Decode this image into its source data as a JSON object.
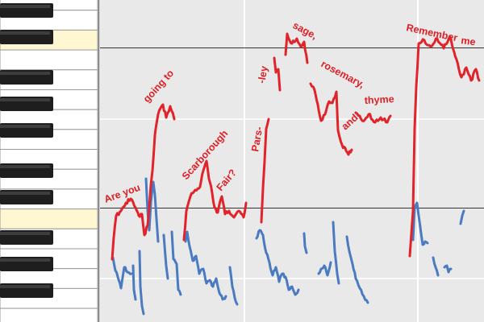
{
  "piano": {
    "highlighted_white_keys": [
      2,
      11
    ],
    "colors": {
      "white_key": "#ffffff",
      "highlight_key": "#fff7d1",
      "black_key": "#1e1e1e",
      "key_border": "#9a9a9a"
    }
  },
  "roll": {
    "background": "#e9e9e9",
    "grid_color": "#ffffff",
    "reference_line_color": "#333333"
  },
  "lyrics": {
    "color": "#dd1f26",
    "words": [
      "Are you",
      "going to",
      "Scarborough",
      "Fair?",
      "Pars-",
      "-ley",
      "sage,",
      "rosemary,",
      "and",
      "thyme",
      "Remember",
      "me"
    ]
  },
  "pitch_traces": {
    "melody_color": "#e0242a",
    "secondary_color": "#4a7bc0"
  }
}
